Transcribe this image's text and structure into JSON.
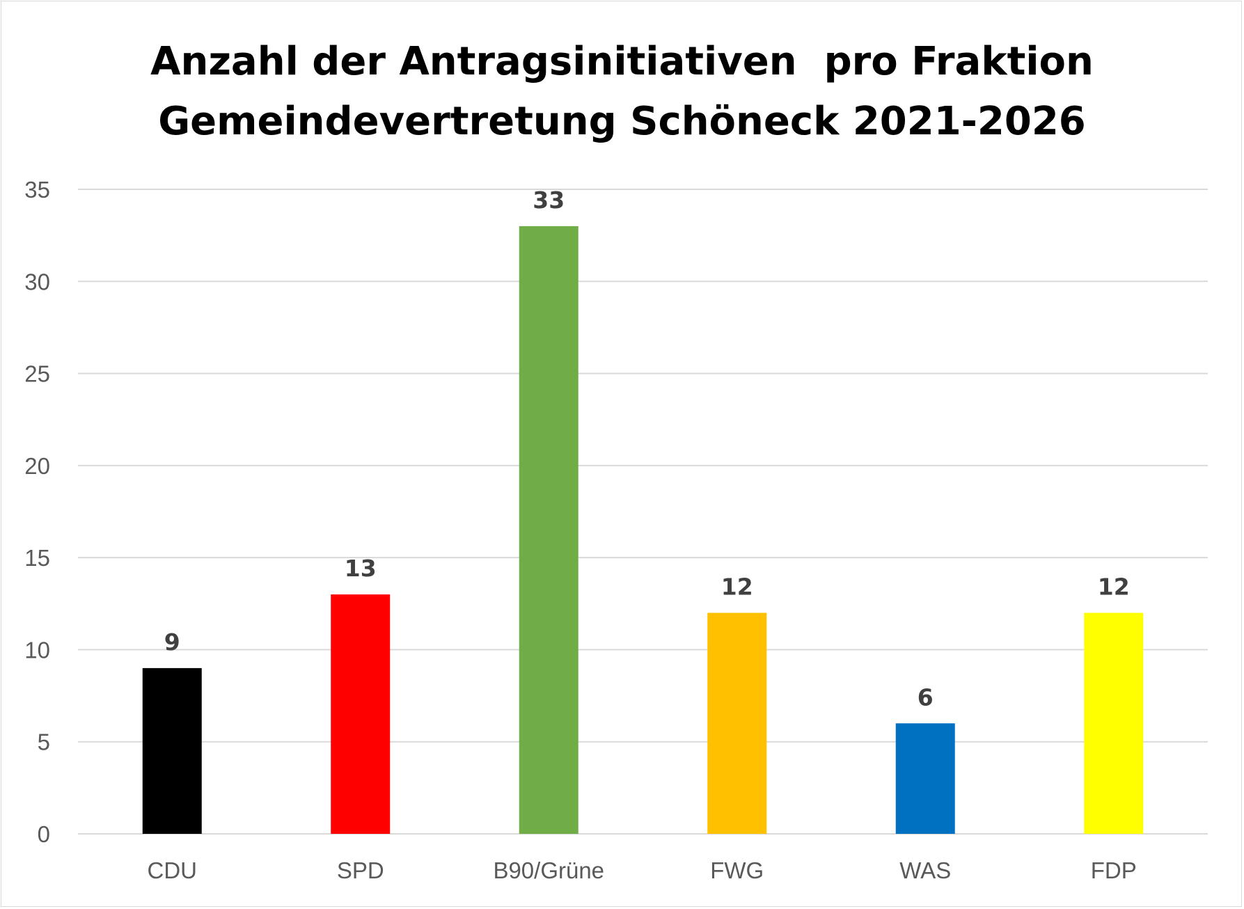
{
  "chart_data": {
    "type": "bar",
    "title_lines": [
      "Anzahl der Antragsinitiativen  pro Fraktion",
      "Gemeindevertretung Schöneck 2021-2026"
    ],
    "categories": [
      "CDU",
      "SPD",
      "B90/Grüne",
      "FWG",
      "WAS",
      "FDP"
    ],
    "values": [
      9,
      13,
      33,
      12,
      6,
      12
    ],
    "colors": [
      "#000000",
      "#ff0000",
      "#70ad47",
      "#ffc000",
      "#0070c0",
      "#ffff00"
    ],
    "ylim": [
      0,
      35
    ],
    "yticks": [
      0,
      5,
      10,
      15,
      20,
      25,
      30,
      35
    ],
    "xlabel": "",
    "ylabel": "",
    "grid": true,
    "gridColor": "#d9d9d9",
    "data_labels": true
  }
}
